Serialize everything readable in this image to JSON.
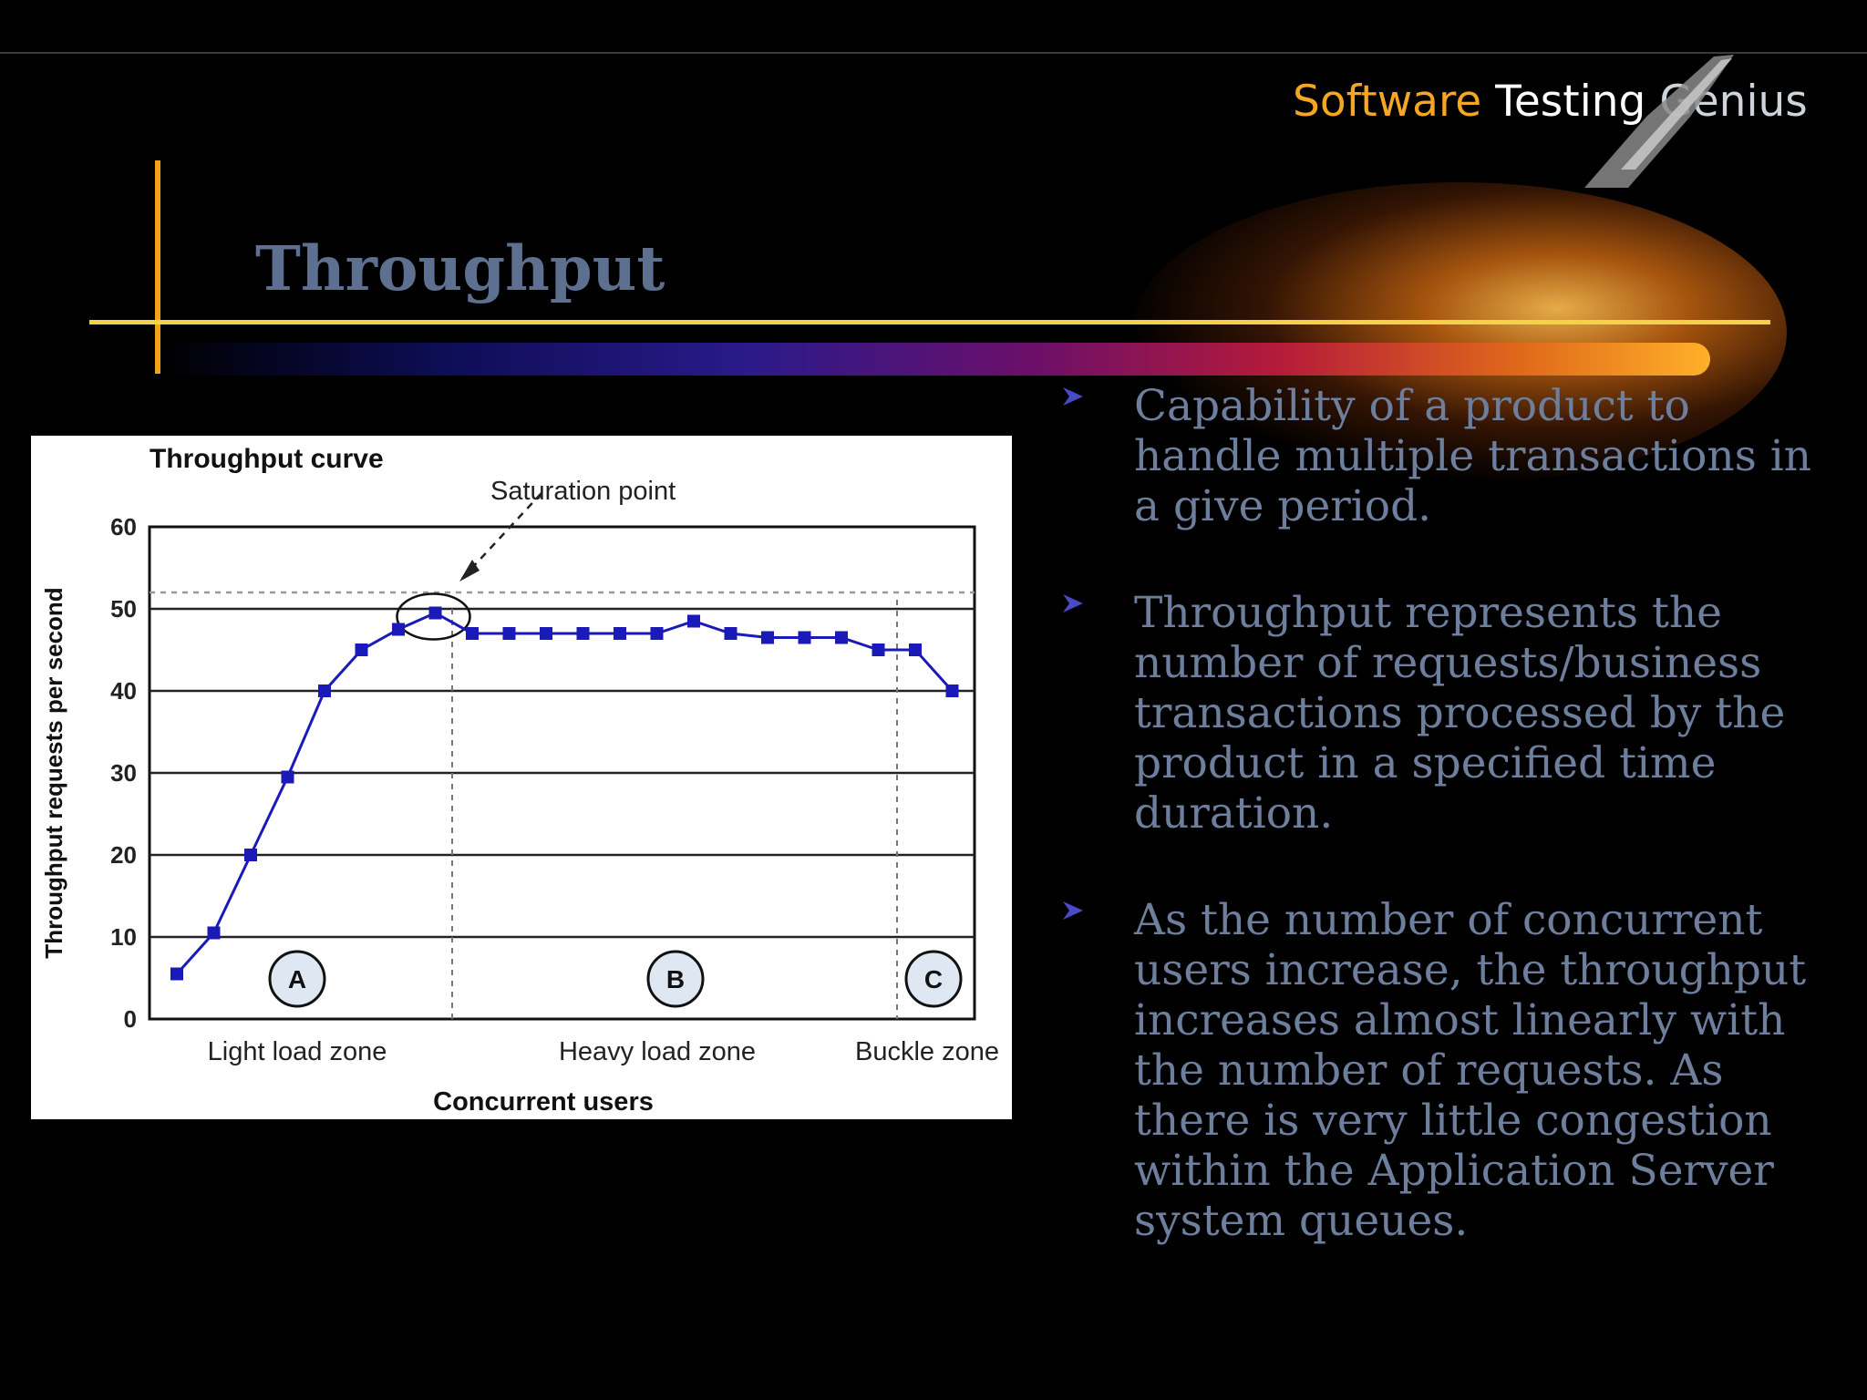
{
  "logo": {
    "word1": "Software",
    "word2": "Testing",
    "word3": "Genius"
  },
  "slide": {
    "title": "Throughput"
  },
  "bullets": [
    "Capability of a product to handle multiple transactions in a give period.",
    "Throughput represents the number of requests/business transactions processed by the product in a specified time duration.",
    "As the number of concurrent users increase, the throughput increases almost linearly with the number of requests. As there is very little congestion within the Application Server system queues."
  ],
  "colors": {
    "title": "#5d7090",
    "bullet_text": "#6d7f9d",
    "accent_orange": "#f2a31c",
    "series": "#1a1ab8"
  },
  "chart_data": {
    "type": "line",
    "title": "Throughput curve",
    "xlabel": "Concurrent users",
    "ylabel": "Throughput requests per second",
    "ylim": [
      0,
      60
    ],
    "yticks": [
      0,
      10,
      20,
      30,
      40,
      50,
      60
    ],
    "grid": true,
    "x": [
      1,
      2,
      3,
      4,
      5,
      6,
      7,
      8,
      9,
      10,
      11,
      12,
      13,
      14,
      15,
      16,
      17,
      18,
      19,
      20,
      21,
      22
    ],
    "series": [
      {
        "values": [
          5.5,
          10.5,
          20,
          29.5,
          40,
          45,
          47.5,
          49.5,
          47,
          47,
          47,
          47,
          47,
          47,
          48.5,
          47,
          46.5,
          46.5,
          46.5,
          45,
          45,
          40
        ]
      }
    ],
    "zones": [
      {
        "marker": "A",
        "label": "Light load zone"
      },
      {
        "marker": "B",
        "label": "Heavy load zone"
      },
      {
        "marker": "C",
        "label": "Buckle zone"
      }
    ],
    "annotation": "Saturation point",
    "saturation_level": 52
  }
}
